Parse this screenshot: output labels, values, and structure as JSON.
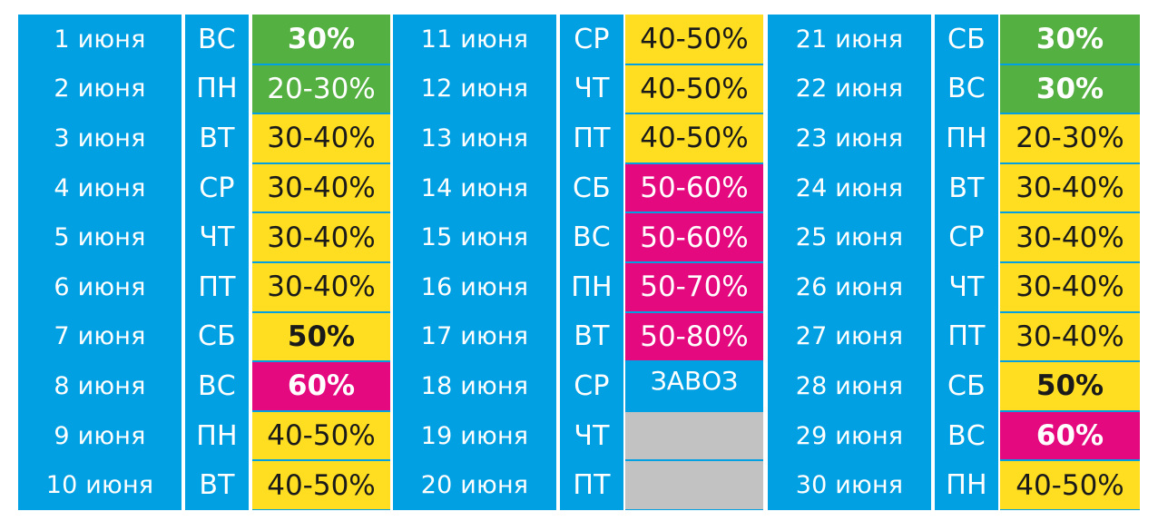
{
  "colors": {
    "background_blue": "#00a0e3",
    "green": "#54b041",
    "yellow": "#ffde21",
    "magenta": "#e5097f",
    "gray": "#c2c2c2"
  },
  "columns": [
    {
      "rows": [
        {
          "date": "1 июня",
          "day": "ВС",
          "discount": "30%",
          "color": "green",
          "bold": true
        },
        {
          "date": "2 июня",
          "day": "ПН",
          "discount": "20-30%",
          "color": "green",
          "bold": false
        },
        {
          "date": "3 июня",
          "day": "ВТ",
          "discount": "30-40%",
          "color": "yellow",
          "bold": false
        },
        {
          "date": "4 июня",
          "day": "СР",
          "discount": "30-40%",
          "color": "yellow",
          "bold": false
        },
        {
          "date": "5 июня",
          "day": "ЧТ",
          "discount": "30-40%",
          "color": "yellow",
          "bold": false
        },
        {
          "date": "6 июня",
          "day": "ПТ",
          "discount": "30-40%",
          "color": "yellow",
          "bold": false
        },
        {
          "date": "7 июня",
          "day": "СБ",
          "discount": "50%",
          "color": "yellow",
          "bold": true
        },
        {
          "date": "8 июня",
          "day": "ВС",
          "discount": "60%",
          "color": "magenta",
          "bold": true
        },
        {
          "date": "9 июня",
          "day": "ПН",
          "discount": "40-50%",
          "color": "yellow",
          "bold": false
        },
        {
          "date": "10 июня",
          "day": "ВТ",
          "discount": "40-50%",
          "color": "yellow",
          "bold": false
        }
      ]
    },
    {
      "rows": [
        {
          "date": "11 июня",
          "day": "СР",
          "discount": "40-50%",
          "color": "yellow",
          "bold": false
        },
        {
          "date": "12 июня",
          "day": "ЧТ",
          "discount": "40-50%",
          "color": "yellow",
          "bold": false
        },
        {
          "date": "13 июня",
          "day": "ПТ",
          "discount": "40-50%",
          "color": "yellow",
          "bold": false
        },
        {
          "date": "14 июня",
          "day": "СБ",
          "discount": "50-60%",
          "color": "magenta",
          "bold": false
        },
        {
          "date": "15 июня",
          "day": "ВС",
          "discount": "50-60%",
          "color": "magenta",
          "bold": false
        },
        {
          "date": "16 июня",
          "day": "ПН",
          "discount": "50-70%",
          "color": "magenta",
          "bold": false
        },
        {
          "date": "17 июня",
          "day": "ВТ",
          "discount": "50-80%",
          "color": "magenta",
          "bold": false
        },
        {
          "date": "18 июня",
          "day": "СР",
          "discount": "ЗАВОЗ",
          "color": "blue",
          "bold": false
        },
        {
          "date": "19 июня",
          "day": "ЧТ",
          "discount": "",
          "color": "gray",
          "bold": false
        },
        {
          "date": "20 июня",
          "day": "ПТ",
          "discount": "",
          "color": "gray",
          "bold": false
        }
      ]
    },
    {
      "rows": [
        {
          "date": "21 июня",
          "day": "СБ",
          "discount": "30%",
          "color": "green",
          "bold": true
        },
        {
          "date": "22 июня",
          "day": "ВС",
          "discount": "30%",
          "color": "green",
          "bold": true
        },
        {
          "date": "23 июня",
          "day": "ПН",
          "discount": "20-30%",
          "color": "yellow",
          "bold": false
        },
        {
          "date": "24 июня",
          "day": "ВТ",
          "discount": "30-40%",
          "color": "yellow",
          "bold": false
        },
        {
          "date": "25 июня",
          "day": "СР",
          "discount": "30-40%",
          "color": "yellow",
          "bold": false
        },
        {
          "date": "26 июня",
          "day": "ЧТ",
          "discount": "30-40%",
          "color": "yellow",
          "bold": false
        },
        {
          "date": "27 июня",
          "day": "ПТ",
          "discount": "30-40%",
          "color": "yellow",
          "bold": false
        },
        {
          "date": "28 июня",
          "day": "СБ",
          "discount": "50%",
          "color": "yellow",
          "bold": true
        },
        {
          "date": "29 июня",
          "day": "ВС",
          "discount": "60%",
          "color": "magenta",
          "bold": true
        },
        {
          "date": "30 июня",
          "day": "ПН",
          "discount": "40-50%",
          "color": "yellow",
          "bold": false
        }
      ]
    }
  ]
}
